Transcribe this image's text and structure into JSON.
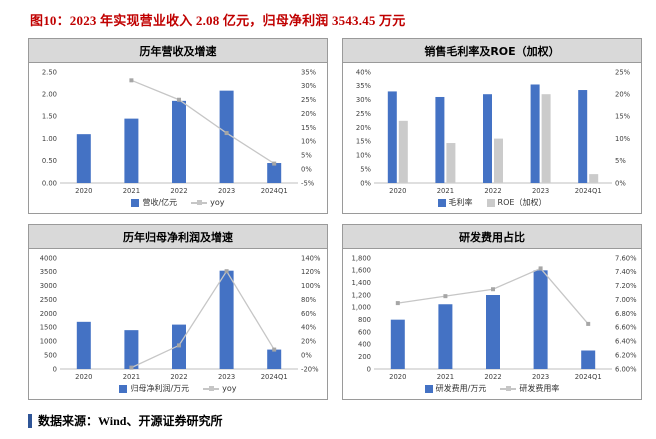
{
  "title": "图10：2023 年实现营业收入 2.08 亿元，归母净利润 3543.45 万元",
  "source": "数据来源：Wind、开源证券研究所",
  "colors": {
    "bar_blue": "#4472C4",
    "bar_gray": "#CBCBCB",
    "line_gray": "#C6C6C6",
    "line_marker": "#A6A6A6",
    "title_red": "#C00000",
    "accent_blue": "#2F5597",
    "header_gray": "#D9D9D9"
  },
  "chart_data": [
    {
      "type": "bar+line",
      "title": "历年营收及增速",
      "categories": [
        "2020",
        "2021",
        "2022",
        "2023",
        "2024Q1"
      ],
      "bars": [
        {
          "name": "营收/亿元",
          "axis": "left",
          "values": [
            1.1,
            1.45,
            1.85,
            2.08,
            0.45
          ]
        }
      ],
      "line": {
        "name": "yoy",
        "axis": "right",
        "values": [
          null,
          32,
          25,
          13,
          2
        ]
      },
      "left_axis": {
        "min": 0,
        "max": 2.5,
        "step": 0.5,
        "format": "dec2"
      },
      "right_axis": {
        "min": -5,
        "max": 35,
        "step": 5,
        "format": "pct"
      },
      "legend_position": "bottom",
      "grid": false
    },
    {
      "type": "bar",
      "title": "销售毛利率及ROE（加权）",
      "categories": [
        "2020",
        "2021",
        "2022",
        "2023",
        "2024Q1"
      ],
      "bars": [
        {
          "name": "毛利率",
          "axis": "left",
          "values": [
            33,
            31,
            32,
            35.5,
            33.5
          ]
        },
        {
          "name": "ROE（加权）",
          "axis": "right",
          "values": [
            14,
            9,
            10,
            20,
            2
          ]
        }
      ],
      "line": null,
      "left_axis": {
        "min": 0,
        "max": 40,
        "step": 5,
        "format": "pct"
      },
      "right_axis": {
        "min": 0,
        "max": 25,
        "step": 5,
        "format": "pct"
      },
      "legend_position": "bottom",
      "grid": false
    },
    {
      "type": "bar+line",
      "title": "历年归母净利润及增速",
      "categories": [
        "2020",
        "2021",
        "2022",
        "2023",
        "2024Q1"
      ],
      "bars": [
        {
          "name": "归母净利润/万元",
          "axis": "left",
          "values": [
            1700,
            1400,
            1600,
            3543,
            700
          ]
        }
      ],
      "line": {
        "name": "yoy",
        "axis": "right",
        "values": [
          null,
          -18,
          14,
          121,
          8
        ]
      },
      "left_axis": {
        "min": 0,
        "max": 4000,
        "step": 500,
        "format": "int"
      },
      "right_axis": {
        "min": -20,
        "max": 140,
        "step": 20,
        "format": "pct"
      },
      "legend_position": "bottom",
      "grid": false
    },
    {
      "type": "bar+line",
      "title": "研发费用占比",
      "categories": [
        "2020",
        "2021",
        "2022",
        "2023",
        "2024Q1"
      ],
      "bars": [
        {
          "name": "研发费用/万元",
          "axis": "left",
          "values": [
            800,
            1050,
            1200,
            1600,
            300
          ]
        }
      ],
      "line": {
        "name": "研发费用率",
        "axis": "right",
        "values": [
          6.95,
          7.05,
          7.15,
          7.45,
          6.65
        ]
      },
      "left_axis": {
        "min": 0,
        "max": 1800,
        "step": 200,
        "format": "comma"
      },
      "right_axis": {
        "min": 6.0,
        "max": 7.6,
        "step": 0.2,
        "format": "pct2"
      },
      "legend_position": "bottom",
      "grid": false
    }
  ]
}
